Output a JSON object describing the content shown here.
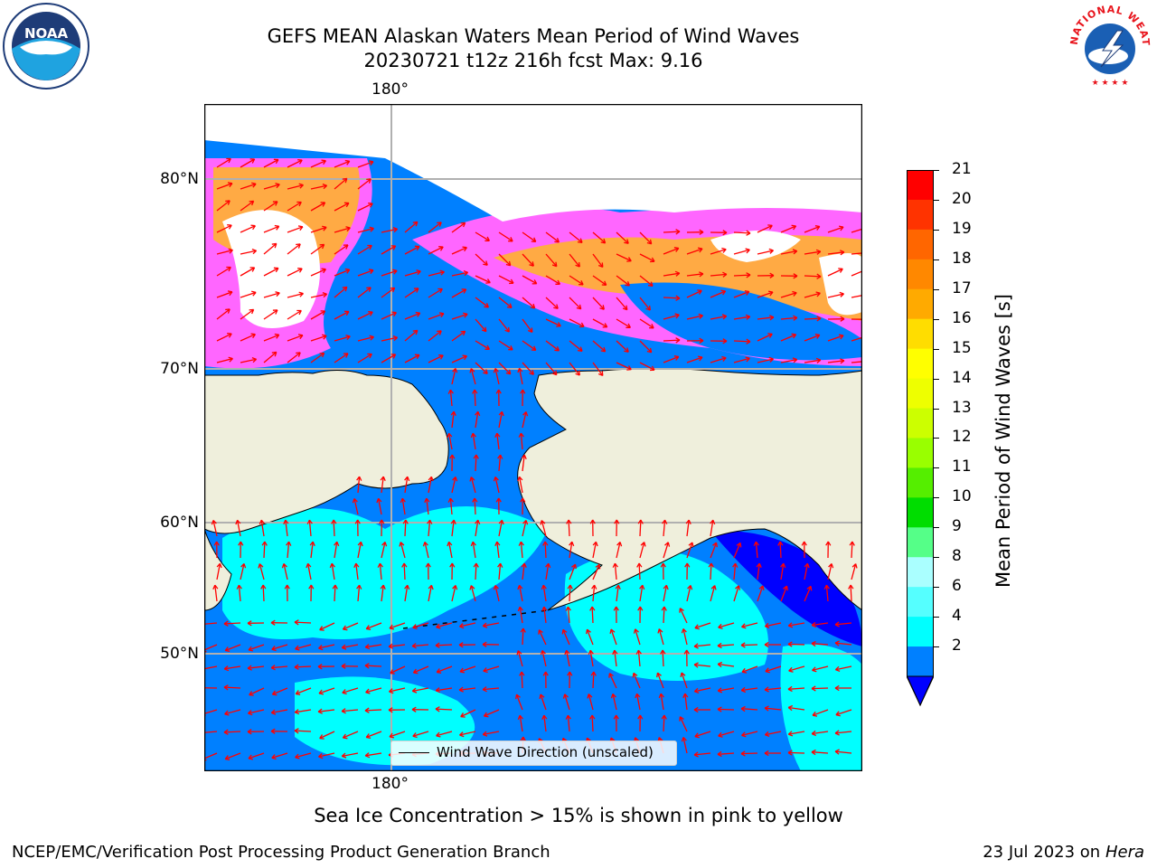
{
  "title": {
    "line1": "GEFS MEAN Alaskan Waters Mean Period of Wind Waves",
    "line2": "20230721 t12z 216h fcst   Max: 9.16"
  },
  "axes": {
    "lon_top": "180°",
    "lon_bottom": "180°",
    "lat_labels": [
      "80°N",
      "70°N",
      "60°N",
      "50°N"
    ]
  },
  "legend": {
    "label": "Wind Wave Direction (unscaled)"
  },
  "colorbar": {
    "label": "Mean Period of Wind Waves [s]",
    "ticks": [
      "21",
      "20",
      "19",
      "18",
      "17",
      "16",
      "15",
      "14",
      "13",
      "12",
      "11",
      "10",
      "9",
      "8",
      "6",
      "4",
      "2"
    ],
    "colors": [
      "#ff0000",
      "#ff3300",
      "#ff6600",
      "#ff8800",
      "#ffaa00",
      "#ffdd00",
      "#ffff00",
      "#eeff00",
      "#ccff00",
      "#99ff00",
      "#55ee00",
      "#00dd00",
      "#55ff88",
      "#aaffff",
      "#55ffff",
      "#00ffff",
      "#0080ff"
    ],
    "under_color": "#0000ff"
  },
  "map_colors": {
    "land": "#efefdc",
    "ocean_low": "#0080ff",
    "ocean_mid": "#00ffff",
    "ocean_deep": "#0000ff",
    "ice_pink": "#ff66ff",
    "ice_orange": "#ffaa44",
    "arrow": "#ff0000",
    "grid": "#b0b0b0"
  },
  "notes": {
    "ice": "Sea Ice Concentration > 15% is shown in pink to yellow"
  },
  "footer": {
    "left": "NCEP/EMC/Verification Post Processing Product Generation Branch",
    "right_date": "23 Jul 2023 on",
    "right_host": "Hera"
  },
  "logos": {
    "noaa": "NOAA",
    "nws": "NATIONAL WEATHER SERVICE"
  }
}
